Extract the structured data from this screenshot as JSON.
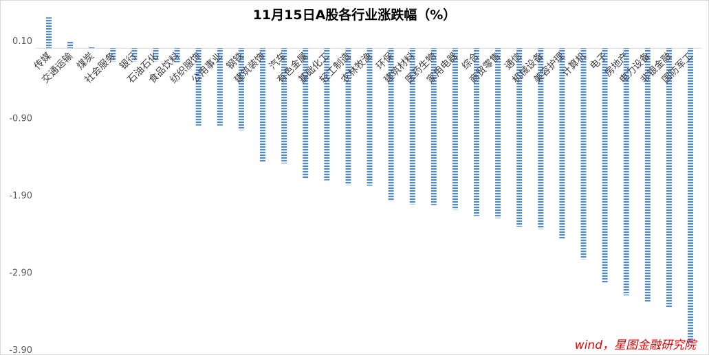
{
  "chart_data": {
    "type": "bar",
    "title": "11月15日A股各行业涨跌幅（%）",
    "xlabel": "",
    "ylabel": "",
    "ylim": [
      -3.9,
      0.4
    ],
    "yticks": [
      0.1,
      -0.9,
      -1.9,
      -2.9,
      -3.9
    ],
    "ytick_labels": [
      "0.10",
      "-0.90",
      "-1.90",
      "-2.90",
      "-3.90"
    ],
    "grid": false,
    "legend": "none",
    "bar_color": "#4a86e8",
    "bar_style": "dashed-stripe",
    "categories": [
      "传媒",
      "交通运输",
      "煤炭",
      "社会服务",
      "银行",
      "石油石化",
      "食品饮料",
      "纺织服饰",
      "公用事业",
      "钢铁",
      "建筑装饰",
      "汽车",
      "有色金属",
      "基础化工",
      "轻工制造",
      "农林牧渔",
      "环保",
      "建筑材料",
      "医药生物",
      "家用电器",
      "综合",
      "商贸零售",
      "通信",
      "机械设备",
      "美容护理",
      "计算机",
      "电子",
      "房地产",
      "电力设备",
      "非银金融",
      "国防军工"
    ],
    "values": [
      0.4,
      0.09,
      0.02,
      -0.17,
      -0.17,
      -0.17,
      -0.18,
      -1.0,
      -1.0,
      -1.06,
      -1.47,
      -1.49,
      -1.68,
      -1.71,
      -1.77,
      -1.78,
      -1.97,
      -2.02,
      -2.03,
      -2.09,
      -2.17,
      -2.2,
      -2.31,
      -2.34,
      -2.47,
      -2.73,
      -3.04,
      -3.2,
      -3.28,
      -3.35,
      -3.81
    ]
  },
  "source": "wind，星图金融研究院"
}
